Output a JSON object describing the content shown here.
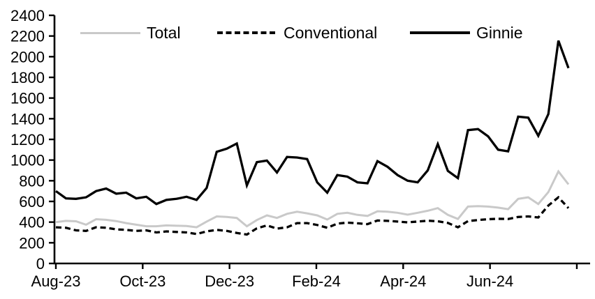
{
  "chart_data": {
    "type": "line",
    "title": "",
    "legend_position": "top",
    "grid": false,
    "x_axis": {
      "tick_labels": [
        "Aug-23",
        "Oct-23",
        "Dec-23",
        "Feb-24",
        "Apr-24",
        "Jun-24",
        ""
      ],
      "frequency": "weekly",
      "start_label": "Aug-23"
    },
    "y_axis": {
      "min": 0,
      "max": 2400,
      "tick_step": 200,
      "ticks": [
        0,
        200,
        400,
        600,
        800,
        1000,
        1200,
        1400,
        1600,
        1800,
        2000,
        2200,
        2400
      ]
    },
    "series": [
      {
        "name": "Total",
        "color": "#c9c9c9",
        "style": "solid",
        "values": [
          400,
          412,
          408,
          375,
          428,
          422,
          410,
          390,
          375,
          360,
          360,
          368,
          365,
          362,
          350,
          405,
          455,
          450,
          440,
          360,
          420,
          465,
          440,
          480,
          500,
          485,
          465,
          425,
          480,
          490,
          470,
          460,
          505,
          500,
          490,
          472,
          490,
          510,
          535,
          470,
          430,
          550,
          555,
          550,
          540,
          525,
          625,
          640,
          575,
          690,
          890,
          765
        ]
      },
      {
        "name": "Conventional",
        "color": "#000000",
        "style": "dashed",
        "values": [
          350,
          345,
          320,
          315,
          350,
          345,
          330,
          325,
          315,
          320,
          300,
          310,
          305,
          300,
          285,
          310,
          325,
          315,
          295,
          280,
          340,
          368,
          337,
          350,
          390,
          390,
          372,
          345,
          385,
          395,
          388,
          380,
          415,
          412,
          405,
          398,
          405,
          413,
          408,
          392,
          350,
          410,
          420,
          428,
          432,
          430,
          450,
          455,
          445,
          560,
          640,
          535
        ]
      },
      {
        "name": "Ginnie",
        "color": "#000000",
        "style": "solid",
        "values": [
          700,
          630,
          625,
          640,
          700,
          725,
          675,
          685,
          630,
          645,
          575,
          615,
          625,
          645,
          615,
          730,
          1080,
          1110,
          1160,
          755,
          980,
          995,
          880,
          1030,
          1025,
          1010,
          785,
          685,
          855,
          840,
          785,
          775,
          990,
          935,
          855,
          800,
          785,
          900,
          1155,
          895,
          825,
          1290,
          1300,
          1230,
          1100,
          1085,
          1420,
          1410,
          1235,
          1445,
          2155,
          1890
        ]
      }
    ]
  }
}
